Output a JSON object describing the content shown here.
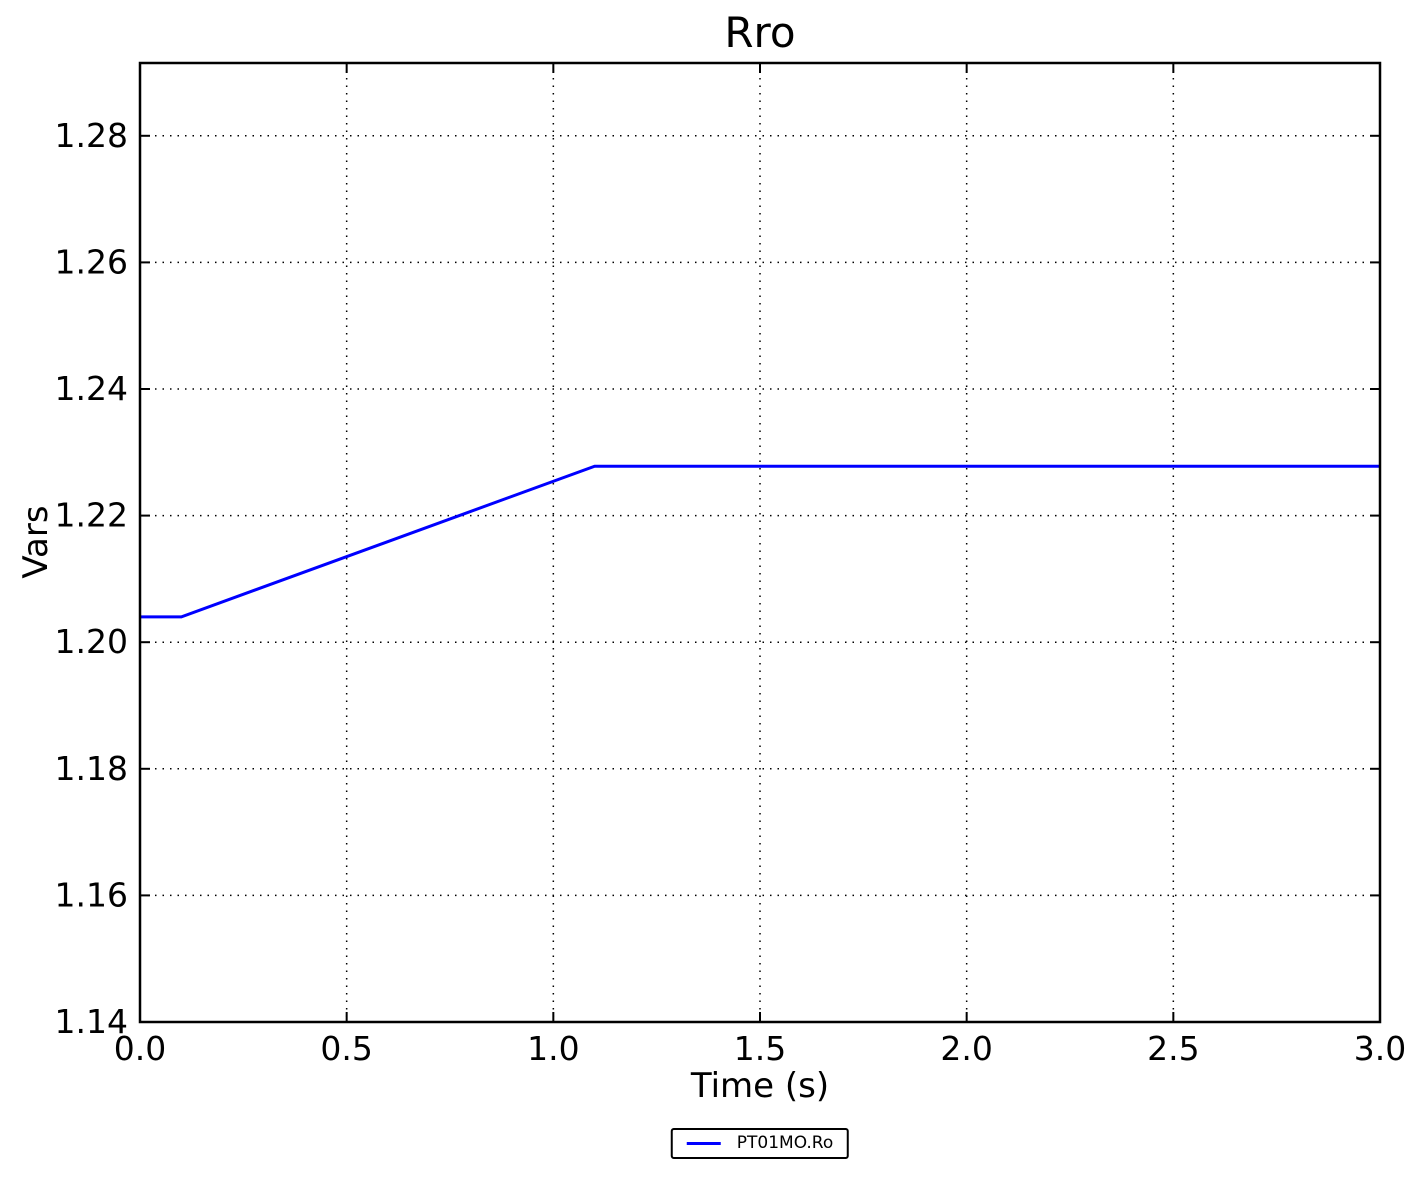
{
  "chart_data": {
    "type": "line",
    "title": "Rro",
    "xlabel": "Time (s)",
    "ylabel": "Vars",
    "xlim": [
      0.0,
      3.0
    ],
    "ylim": [
      1.14,
      1.2915
    ],
    "x_ticks": [
      0.0,
      0.5,
      1.0,
      1.5,
      2.0,
      2.5,
      3.0
    ],
    "x_tick_labels": [
      "0.0",
      "0.5",
      "1.0",
      "1.5",
      "2.0",
      "2.5",
      "3.0"
    ],
    "y_ticks": [
      1.14,
      1.16,
      1.18,
      1.2,
      1.22,
      1.24,
      1.26,
      1.28
    ],
    "y_tick_labels": [
      "1.14",
      "1.16",
      "1.18",
      "1.20",
      "1.22",
      "1.24",
      "1.26",
      "1.28"
    ],
    "grid": true,
    "grid_style": "dotted",
    "tick_direction": "in",
    "legend_position": "below-axes-centered",
    "series": [
      {
        "name": "PT01MO.Ro",
        "color": "#0000ff",
        "line_width": 3,
        "points": [
          [
            0.0,
            1.204
          ],
          [
            0.1,
            1.204
          ],
          [
            1.1,
            1.2278
          ],
          [
            3.0,
            1.2278
          ]
        ]
      }
    ]
  }
}
